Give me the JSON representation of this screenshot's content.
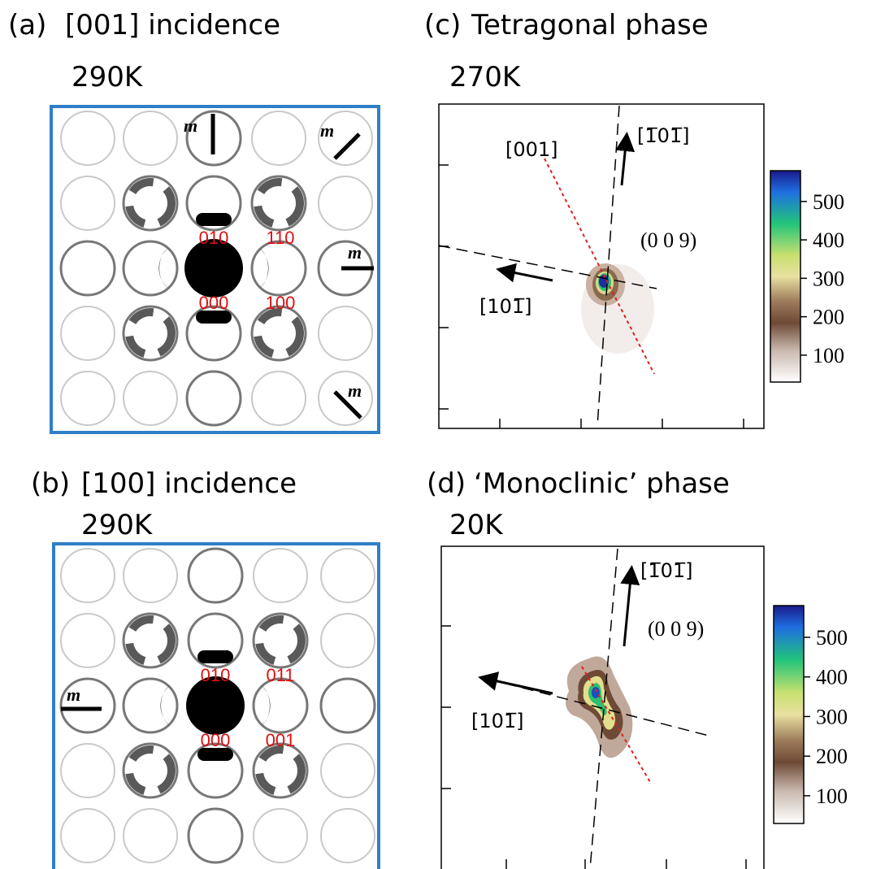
{
  "panels": [
    {
      "label": "(a)",
      "title": "[001] incidence",
      "temperature": "290K",
      "spot_labels": [
        "010",
        "110",
        "000",
        "100"
      ],
      "mirror_labels": [
        "m",
        "m",
        "m",
        "m"
      ]
    },
    {
      "label": "(b)",
      "title": "[100] incidence",
      "temperature": "290K",
      "spot_labels": [
        "010",
        "011",
        "000",
        "001"
      ],
      "mirror_labels": [
        "m"
      ]
    },
    {
      "label": "(c)",
      "title": "Tetragonal phase",
      "temperature": "270K",
      "reflection": "(0 0 9)",
      "directions": [
        "[001]",
        "[1̅01̅]",
        "[101̅]"
      ],
      "colorbar": {
        "lim": [
          30,
          580
        ],
        "ticks": [
          100,
          200,
          300,
          400,
          500
        ]
      }
    },
    {
      "label": "(d)",
      "title": "‘Monoclinic’ phase",
      "temperature": "20K",
      "reflection": "(0 0 9)",
      "directions": [
        "[1̅01̅]",
        "[101̅]"
      ],
      "colorbar": {
        "lim": [
          30,
          580
        ],
        "ticks": [
          100,
          200,
          300,
          400,
          500
        ]
      }
    }
  ]
}
